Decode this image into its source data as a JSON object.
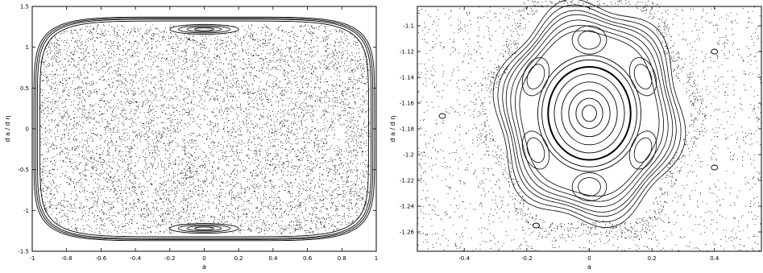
{
  "chart_data": [
    {
      "type": "scatter",
      "title": "",
      "xlabel": "a",
      "ylabel": "d a / d η",
      "xlim": [
        -1,
        1
      ],
      "ylim": [
        -1.5,
        1.5
      ],
      "xticks": [
        "-1",
        "-0.8",
        "-0.6",
        "-0.4",
        "-0.2",
        "0",
        "0.2",
        "0.4",
        "0.6",
        "0.8",
        "1"
      ],
      "yticks": [
        "1.5",
        "1",
        "0.5",
        "0",
        "-0.5",
        "-1",
        "-1.5"
      ],
      "grid": false,
      "ink_color": "#000000",
      "structure": {
        "outer_boundary": {
          "a_half_width": 0.99,
          "v_half_height": 1.37
        },
        "chaotic_sea": {
          "a_extent": [
            -0.96,
            0.96
          ],
          "v_extent": [
            -1.28,
            1.28
          ]
        },
        "islands": [
          {
            "a": 0.0,
            "v": 1.22,
            "a_radius": 0.2,
            "v_radius": 0.06
          },
          {
            "a": 0.0,
            "v": -1.22,
            "a_radius": 0.2,
            "v_radius": 0.06
          }
        ]
      }
    },
    {
      "type": "scatter",
      "title": "",
      "xlabel": "a",
      "ylabel": "d a / d η",
      "xlim": [
        -0.55,
        0.55
      ],
      "ylim": [
        -1.275,
        -1.085
      ],
      "xticks": [
        "-0.4",
        "-0.2",
        "0",
        "0.2",
        "0.4"
      ],
      "yticks": [
        "-1.1",
        "-1.12",
        "-1.14",
        "-1.16",
        "-1.18",
        "-1.2",
        "-1.22",
        "-1.24",
        "-1.26"
      ],
      "grid": false,
      "ink_color": "#000000",
      "structure": {
        "center": {
          "a": 0.0,
          "v": -1.168
        },
        "resonance_islands": 6,
        "outer_chaotic_band_radius": {
          "a": 0.33,
          "v": 0.095
        }
      }
    }
  ]
}
